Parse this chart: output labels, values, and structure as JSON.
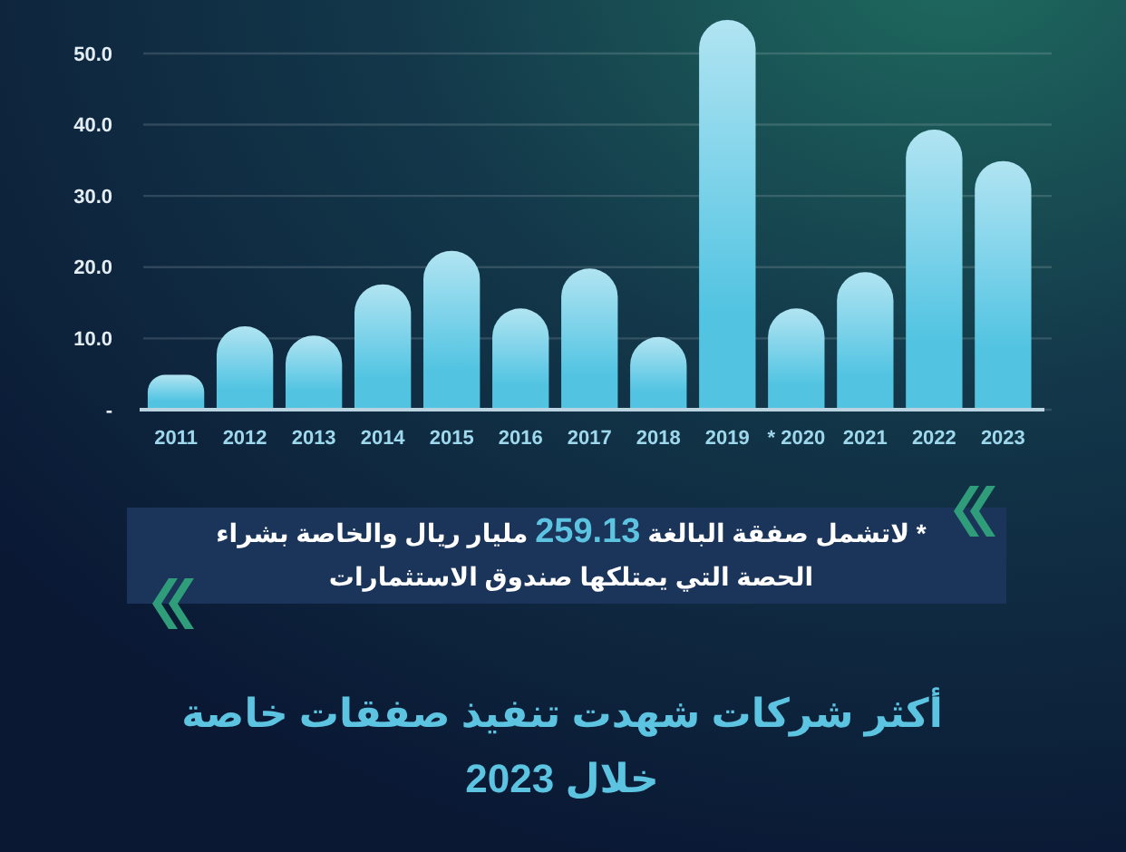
{
  "chart_data": {
    "type": "bar",
    "categories": [
      "2011",
      "2012",
      "2013",
      "2014",
      "2015",
      "2016",
      "2017",
      "2018",
      "2019",
      "* 2020",
      "2021",
      "2022",
      "2023"
    ],
    "values": [
      4.9,
      11.7,
      10.4,
      17.6,
      22.3,
      14.2,
      19.8,
      10.2,
      54.7,
      14.2,
      19.3,
      39.3,
      34.9
    ],
    "color": "#52c4e2",
    "ylim": [
      0,
      54.7
    ],
    "yticks": [
      {
        "value": 0,
        "label": "-"
      },
      {
        "value": 10,
        "label": "10.0"
      },
      {
        "value": 20,
        "label": "20.0"
      },
      {
        "value": 30,
        "label": "30.0"
      },
      {
        "value": 40,
        "label": "40.0"
      },
      {
        "value": 50,
        "label": "50.0"
      }
    ],
    "grid": "y",
    "annotations": [
      "* لاتشمل صفقة البالغة 259.13 مليار ريال والخاصة بشراء الحصة التي يمتلكها صندوق الاستثمارات",
      "أكثر شركات شهدت تنفيذ صفقات خاصة خلال 2023"
    ]
  }
}
